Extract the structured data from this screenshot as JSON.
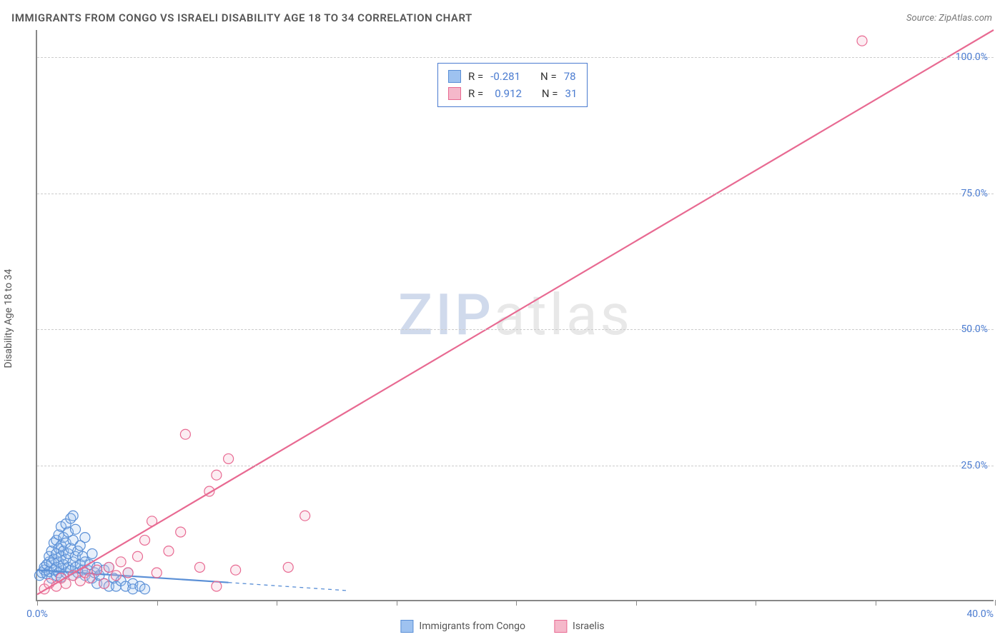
{
  "title": "IMMIGRANTS FROM CONGO VS ISRAELI DISABILITY AGE 18 TO 34 CORRELATION CHART",
  "source": "Source: ZipAtlas.com",
  "ylabel": "Disability Age 18 to 34",
  "watermark_zip": "ZIP",
  "watermark_atlas": "atlas",
  "chart": {
    "type": "scatter",
    "xlim": [
      0,
      40
    ],
    "ylim": [
      0,
      105
    ],
    "x_ticks": [
      0,
      5,
      10,
      15,
      20,
      25,
      30,
      35,
      40
    ],
    "x_tick_labels": {
      "first": "0.0%",
      "last": "40.0%"
    },
    "y_ticks": [
      25,
      50,
      75,
      100
    ],
    "y_tick_labels": [
      "25.0%",
      "50.0%",
      "75.0%",
      "100.0%"
    ],
    "background_color": "#ffffff",
    "grid_color": "#cccccc",
    "axis_color": "#888888",
    "tick_label_color": "#4a7bd0",
    "marker_radius": 7,
    "marker_fill_opacity": 0.25,
    "marker_stroke_width": 1.2,
    "series": [
      {
        "name": "Immigrants from Congo",
        "color_fill": "#9ec2f0",
        "color_stroke": "#5a8fd6",
        "r_label": "R =",
        "r_value": "-0.281",
        "n_label": "N =",
        "n_value": "78",
        "trend_line": {
          "x1": 0,
          "y1": 5.5,
          "x2": 8,
          "y2": 3.2,
          "dash_x2": 13,
          "dash_y2": 1.7,
          "stroke_width": 2.2
        },
        "points": [
          [
            0.1,
            4.5
          ],
          [
            0.2,
            5.0
          ],
          [
            0.3,
            5.5
          ],
          [
            0.3,
            6.0
          ],
          [
            0.4,
            4.8
          ],
          [
            0.4,
            6.5
          ],
          [
            0.5,
            5.2
          ],
          [
            0.5,
            7.0
          ],
          [
            0.5,
            8.0
          ],
          [
            0.6,
            4.0
          ],
          [
            0.6,
            6.8
          ],
          [
            0.6,
            9.0
          ],
          [
            0.7,
            5.5
          ],
          [
            0.7,
            7.5
          ],
          [
            0.7,
            10.5
          ],
          [
            0.8,
            4.5
          ],
          [
            0.8,
            6.0
          ],
          [
            0.8,
            8.5
          ],
          [
            0.8,
            11.0
          ],
          [
            0.9,
            5.0
          ],
          [
            0.9,
            7.0
          ],
          [
            0.9,
            9.5
          ],
          [
            0.9,
            12.0
          ],
          [
            1.0,
            4.2
          ],
          [
            1.0,
            5.8
          ],
          [
            1.0,
            8.0
          ],
          [
            1.0,
            10.0
          ],
          [
            1.0,
            13.5
          ],
          [
            1.1,
            6.5
          ],
          [
            1.1,
            9.0
          ],
          [
            1.1,
            11.5
          ],
          [
            1.2,
            5.0
          ],
          [
            1.2,
            7.5
          ],
          [
            1.2,
            10.5
          ],
          [
            1.2,
            14.0
          ],
          [
            1.3,
            6.0
          ],
          [
            1.3,
            8.5
          ],
          [
            1.3,
            12.5
          ],
          [
            1.4,
            5.5
          ],
          [
            1.4,
            9.5
          ],
          [
            1.4,
            15.0
          ],
          [
            1.5,
            4.5
          ],
          [
            1.5,
            7.0
          ],
          [
            1.5,
            11.0
          ],
          [
            1.5,
            15.5
          ],
          [
            1.6,
            6.0
          ],
          [
            1.6,
            8.0
          ],
          [
            1.6,
            13.0
          ],
          [
            1.7,
            5.0
          ],
          [
            1.7,
            9.0
          ],
          [
            1.8,
            6.5
          ],
          [
            1.8,
            10.0
          ],
          [
            1.9,
            5.5
          ],
          [
            1.9,
            8.0
          ],
          [
            2.0,
            4.5
          ],
          [
            2.0,
            7.0
          ],
          [
            2.0,
            11.5
          ],
          [
            2.1,
            5.5
          ],
          [
            2.2,
            6.5
          ],
          [
            2.3,
            4.0
          ],
          [
            2.3,
            8.5
          ],
          [
            2.4,
            5.0
          ],
          [
            2.5,
            6.0
          ],
          [
            2.5,
            3.0
          ],
          [
            2.6,
            4.5
          ],
          [
            2.8,
            5.5
          ],
          [
            2.8,
            3.0
          ],
          [
            3.0,
            2.5
          ],
          [
            3.0,
            6.0
          ],
          [
            3.2,
            4.0
          ],
          [
            3.3,
            2.5
          ],
          [
            3.5,
            3.5
          ],
          [
            3.7,
            2.5
          ],
          [
            3.8,
            5.0
          ],
          [
            4.0,
            3.0
          ],
          [
            4.0,
            2.0
          ],
          [
            4.3,
            2.5
          ],
          [
            4.5,
            2.0
          ]
        ]
      },
      {
        "name": "Israelis",
        "color_fill": "#f5b8ca",
        "color_stroke": "#e86a92",
        "r_label": "R =",
        "r_value": "0.912",
        "n_label": "N =",
        "n_value": "31",
        "trend_line": {
          "x1": 0,
          "y1": 1.0,
          "x2": 40,
          "y2": 105,
          "stroke_width": 2.2
        },
        "points": [
          [
            0.3,
            2.0
          ],
          [
            0.5,
            3.0
          ],
          [
            0.8,
            2.5
          ],
          [
            1.0,
            4.0
          ],
          [
            1.2,
            3.0
          ],
          [
            1.5,
            4.5
          ],
          [
            1.8,
            3.5
          ],
          [
            2.0,
            5.0
          ],
          [
            2.2,
            4.0
          ],
          [
            2.5,
            5.5
          ],
          [
            2.8,
            3.0
          ],
          [
            3.0,
            6.0
          ],
          [
            3.3,
            4.5
          ],
          [
            3.5,
            7.0
          ],
          [
            3.8,
            5.0
          ],
          [
            4.2,
            8.0
          ],
          [
            4.5,
            11.0
          ],
          [
            4.8,
            14.5
          ],
          [
            5.0,
            5.0
          ],
          [
            5.5,
            9.0
          ],
          [
            6.0,
            12.5
          ],
          [
            6.2,
            30.5
          ],
          [
            6.8,
            6.0
          ],
          [
            7.2,
            20.0
          ],
          [
            7.5,
            23.0
          ],
          [
            7.5,
            2.5
          ],
          [
            8.0,
            26.0
          ],
          [
            8.3,
            5.5
          ],
          [
            10.5,
            6.0
          ],
          [
            11.2,
            15.5
          ],
          [
            34.5,
            103.0
          ]
        ]
      }
    ]
  },
  "bottom_legend": [
    {
      "label": "Immigrants from Congo",
      "fill": "#9ec2f0",
      "stroke": "#5a8fd6"
    },
    {
      "label": "Israelis",
      "fill": "#f5b8ca",
      "stroke": "#e86a92"
    }
  ]
}
